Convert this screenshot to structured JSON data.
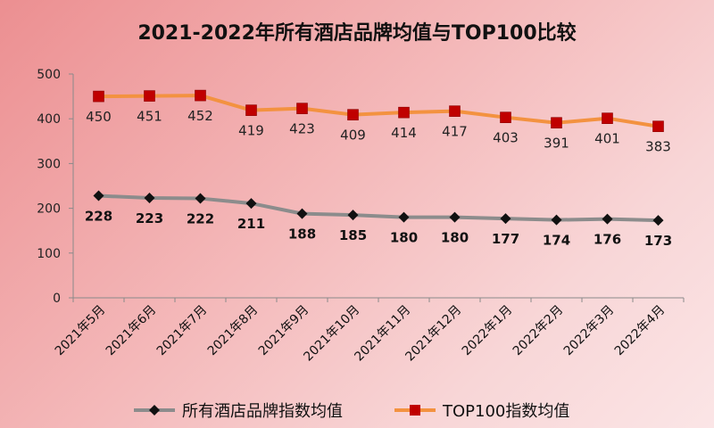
{
  "chart_data": {
    "type": "line",
    "title": "2021-2022年所有酒店品牌均值与TOP100比较",
    "categories": [
      "2021年5月",
      "2021年6月",
      "2021年7月",
      "2021年8月",
      "2021年9月",
      "2021年10月",
      "2021年11月",
      "2021年12月",
      "2022年1月",
      "2022年2月",
      "2022年3月",
      "2022年4月"
    ],
    "ylim": [
      0,
      500
    ],
    "yticks": [
      0,
      100,
      200,
      300,
      400,
      500
    ],
    "xlabel": "",
    "ylabel": "",
    "legend_position": "bottom",
    "series": [
      {
        "name": "所有酒店品牌指数均值",
        "values": [
          228,
          223,
          222,
          211,
          188,
          185,
          180,
          180,
          177,
          174,
          176,
          173
        ],
        "line_color": "#8c8c8c",
        "marker_color": "#111111",
        "marker": "diamond",
        "label_position": "below"
      },
      {
        "name": "TOP100指数均值",
        "values": [
          450,
          451,
          452,
          419,
          423,
          409,
          414,
          417,
          403,
          391,
          401,
          383
        ],
        "line_color": "#f39240",
        "marker_color": "#c00000",
        "marker": "square",
        "label_position": "below"
      }
    ]
  }
}
